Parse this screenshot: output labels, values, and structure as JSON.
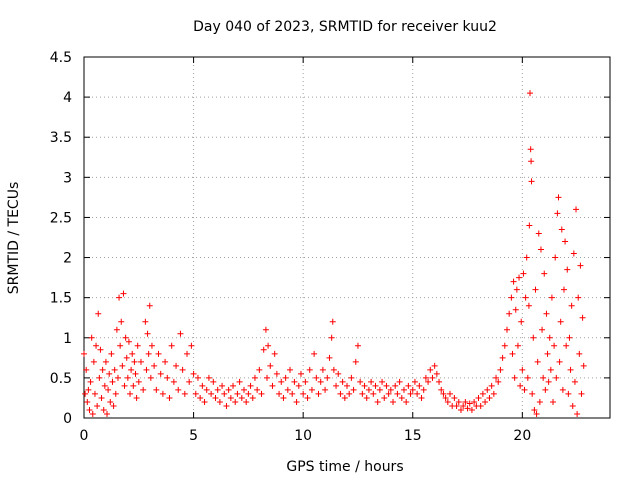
{
  "chart_data": {
    "type": "scatter",
    "title": "Day 040 of 2023, SRMTID for receiver kuu2",
    "xlabel": "GPS time / hours",
    "ylabel": "SRMTID / TECUs",
    "xlim": [
      0,
      24
    ],
    "ylim": [
      0,
      4.5
    ],
    "x_ticks": [
      "0",
      "5",
      "10",
      "15",
      "20"
    ],
    "y_ticks": [
      "0",
      "0.5",
      "1",
      "1.5",
      "2",
      "2.5",
      "3",
      "3.5",
      "4",
      "4.5"
    ],
    "grid": true,
    "marker": "+",
    "color": "#ff0000",
    "series": [
      {
        "name": "SRMTID",
        "points": [
          [
            0.0,
            0.8
          ],
          [
            0.05,
            0.3
          ],
          [
            0.1,
            0.6
          ],
          [
            0.15,
            0.2
          ],
          [
            0.2,
            0.35
          ],
          [
            0.25,
            0.1
          ],
          [
            0.3,
            0.45
          ],
          [
            0.35,
            1.0
          ],
          [
            0.4,
            0.05
          ],
          [
            0.45,
            0.7
          ],
          [
            0.5,
            0.3
          ],
          [
            0.55,
            0.9
          ],
          [
            0.6,
            0.15
          ],
          [
            0.65,
            1.3
          ],
          [
            0.7,
            0.5
          ],
          [
            0.75,
            0.85
          ],
          [
            0.8,
            0.25
          ],
          [
            0.85,
            0.6
          ],
          [
            0.9,
            0.1
          ],
          [
            0.95,
            0.4
          ],
          [
            1.0,
            0.7
          ],
          [
            1.05,
            0.05
          ],
          [
            1.1,
            0.35
          ],
          [
            1.15,
            0.55
          ],
          [
            1.2,
            0.2
          ],
          [
            1.25,
            0.8
          ],
          [
            1.3,
            0.45
          ],
          [
            1.35,
            0.15
          ],
          [
            1.4,
            0.6
          ],
          [
            1.45,
            0.3
          ],
          [
            1.5,
            1.1
          ],
          [
            1.55,
            0.5
          ],
          [
            1.6,
            1.5
          ],
          [
            1.65,
            0.9
          ],
          [
            1.7,
            1.2
          ],
          [
            1.75,
            0.65
          ],
          [
            1.8,
            1.55
          ],
          [
            1.85,
            0.4
          ],
          [
            1.9,
            1.0
          ],
          [
            1.95,
            0.75
          ],
          [
            2.0,
            0.5
          ],
          [
            2.05,
            0.95
          ],
          [
            2.1,
            0.3
          ],
          [
            2.15,
            0.6
          ],
          [
            2.2,
            0.8
          ],
          [
            2.25,
            0.4
          ],
          [
            2.3,
            0.7
          ],
          [
            2.35,
            0.55
          ],
          [
            2.4,
            0.25
          ],
          [
            2.45,
            0.9
          ],
          [
            2.5,
            0.45
          ],
          [
            2.6,
            0.7
          ],
          [
            2.7,
            0.35
          ],
          [
            2.8,
            1.2
          ],
          [
            2.85,
            0.6
          ],
          [
            2.9,
            1.05
          ],
          [
            2.95,
            0.8
          ],
          [
            3.0,
            1.4
          ],
          [
            3.05,
            0.5
          ],
          [
            3.1,
            0.9
          ],
          [
            3.2,
            0.65
          ],
          [
            3.3,
            0.35
          ],
          [
            3.4,
            0.8
          ],
          [
            3.5,
            0.55
          ],
          [
            3.6,
            0.3
          ],
          [
            3.7,
            0.7
          ],
          [
            3.8,
            0.5
          ],
          [
            3.9,
            0.25
          ],
          [
            4.0,
            0.9
          ],
          [
            4.1,
            0.45
          ],
          [
            4.2,
            0.65
          ],
          [
            4.3,
            0.35
          ],
          [
            4.4,
            1.05
          ],
          [
            4.5,
            0.6
          ],
          [
            4.6,
            0.3
          ],
          [
            4.7,
            0.8
          ],
          [
            4.8,
            0.45
          ],
          [
            4.9,
            0.9
          ],
          [
            5.0,
            0.55
          ],
          [
            5.1,
            0.3
          ],
          [
            5.2,
            0.5
          ],
          [
            5.3,
            0.25
          ],
          [
            5.4,
            0.4
          ],
          [
            5.5,
            0.2
          ],
          [
            5.6,
            0.35
          ],
          [
            5.7,
            0.5
          ],
          [
            5.8,
            0.3
          ],
          [
            5.9,
            0.45
          ],
          [
            6.0,
            0.25
          ],
          [
            6.1,
            0.35
          ],
          [
            6.2,
            0.2
          ],
          [
            6.3,
            0.4
          ],
          [
            6.4,
            0.3
          ],
          [
            6.5,
            0.15
          ],
          [
            6.6,
            0.35
          ],
          [
            6.7,
            0.25
          ],
          [
            6.8,
            0.4
          ],
          [
            6.9,
            0.2
          ],
          [
            7.0,
            0.3
          ],
          [
            7.1,
            0.45
          ],
          [
            7.2,
            0.25
          ],
          [
            7.3,
            0.35
          ],
          [
            7.4,
            0.2
          ],
          [
            7.5,
            0.3
          ],
          [
            7.6,
            0.4
          ],
          [
            7.7,
            0.25
          ],
          [
            7.8,
            0.5
          ],
          [
            7.9,
            0.35
          ],
          [
            8.0,
            0.6
          ],
          [
            8.1,
            0.3
          ],
          [
            8.2,
            0.85
          ],
          [
            8.3,
            1.1
          ],
          [
            8.35,
            0.5
          ],
          [
            8.4,
            0.9
          ],
          [
            8.5,
            0.65
          ],
          [
            8.6,
            0.4
          ],
          [
            8.7,
            0.8
          ],
          [
            8.8,
            0.55
          ],
          [
            8.9,
            0.3
          ],
          [
            9.0,
            0.45
          ],
          [
            9.1,
            0.25
          ],
          [
            9.2,
            0.5
          ],
          [
            9.3,
            0.35
          ],
          [
            9.4,
            0.6
          ],
          [
            9.5,
            0.3
          ],
          [
            9.6,
            0.45
          ],
          [
            9.7,
            0.2
          ],
          [
            9.8,
            0.4
          ],
          [
            9.9,
            0.55
          ],
          [
            10.0,
            0.3
          ],
          [
            10.1,
            0.45
          ],
          [
            10.2,
            0.25
          ],
          [
            10.3,
            0.6
          ],
          [
            10.4,
            0.35
          ],
          [
            10.5,
            0.8
          ],
          [
            10.6,
            0.5
          ],
          [
            10.7,
            0.3
          ],
          [
            10.8,
            0.45
          ],
          [
            10.9,
            0.6
          ],
          [
            11.0,
            0.35
          ],
          [
            11.1,
            0.5
          ],
          [
            11.2,
            0.75
          ],
          [
            11.3,
            1.0
          ],
          [
            11.35,
            1.2
          ],
          [
            11.4,
            0.6
          ],
          [
            11.5,
            0.4
          ],
          [
            11.6,
            0.55
          ],
          [
            11.7,
            0.3
          ],
          [
            11.8,
            0.45
          ],
          [
            11.9,
            0.25
          ],
          [
            12.0,
            0.4
          ],
          [
            12.1,
            0.3
          ],
          [
            12.2,
            0.5
          ],
          [
            12.3,
            0.35
          ],
          [
            12.4,
            0.7
          ],
          [
            12.5,
            0.9
          ],
          [
            12.6,
            0.45
          ],
          [
            12.7,
            0.3
          ],
          [
            12.8,
            0.4
          ],
          [
            12.9,
            0.25
          ],
          [
            13.0,
            0.35
          ],
          [
            13.1,
            0.45
          ],
          [
            13.2,
            0.3
          ],
          [
            13.3,
            0.4
          ],
          [
            13.4,
            0.2
          ],
          [
            13.5,
            0.35
          ],
          [
            13.6,
            0.45
          ],
          [
            13.7,
            0.25
          ],
          [
            13.8,
            0.4
          ],
          [
            13.9,
            0.3
          ],
          [
            14.0,
            0.35
          ],
          [
            14.1,
            0.2
          ],
          [
            14.2,
            0.4
          ],
          [
            14.3,
            0.3
          ],
          [
            14.4,
            0.45
          ],
          [
            14.5,
            0.25
          ],
          [
            14.6,
            0.35
          ],
          [
            14.7,
            0.2
          ],
          [
            14.8,
            0.4
          ],
          [
            14.9,
            0.3
          ],
          [
            15.0,
            0.35
          ],
          [
            15.1,
            0.45
          ],
          [
            15.2,
            0.3
          ],
          [
            15.3,
            0.4
          ],
          [
            15.4,
            0.25
          ],
          [
            15.5,
            0.35
          ],
          [
            15.6,
            0.5
          ],
          [
            15.7,
            0.45
          ],
          [
            15.8,
            0.6
          ],
          [
            15.9,
            0.5
          ],
          [
            16.0,
            0.65
          ],
          [
            16.1,
            0.55
          ],
          [
            16.2,
            0.45
          ],
          [
            16.3,
            0.35
          ],
          [
            16.4,
            0.3
          ],
          [
            16.5,
            0.25
          ],
          [
            16.6,
            0.2
          ],
          [
            16.7,
            0.3
          ],
          [
            16.8,
            0.15
          ],
          [
            16.9,
            0.25
          ],
          [
            17.0,
            0.15
          ],
          [
            17.1,
            0.2
          ],
          [
            17.2,
            0.1
          ],
          [
            17.3,
            0.15
          ],
          [
            17.4,
            0.2
          ],
          [
            17.5,
            0.12
          ],
          [
            17.6,
            0.18
          ],
          [
            17.7,
            0.1
          ],
          [
            17.8,
            0.2
          ],
          [
            17.9,
            0.15
          ],
          [
            18.0,
            0.25
          ],
          [
            18.1,
            0.15
          ],
          [
            18.2,
            0.3
          ],
          [
            18.3,
            0.2
          ],
          [
            18.4,
            0.35
          ],
          [
            18.5,
            0.25
          ],
          [
            18.6,
            0.4
          ],
          [
            18.7,
            0.3
          ],
          [
            18.8,
            0.5
          ],
          [
            18.9,
            0.45
          ],
          [
            19.0,
            0.6
          ],
          [
            19.1,
            0.75
          ],
          [
            19.2,
            0.9
          ],
          [
            19.3,
            1.1
          ],
          [
            19.4,
            1.3
          ],
          [
            19.5,
            1.5
          ],
          [
            19.55,
            0.8
          ],
          [
            19.6,
            1.7
          ],
          [
            19.65,
            0.5
          ],
          [
            19.7,
            1.35
          ],
          [
            19.75,
            1.6
          ],
          [
            19.8,
            0.9
          ],
          [
            19.85,
            1.75
          ],
          [
            19.9,
            0.4
          ],
          [
            19.95,
            1.2
          ],
          [
            20.0,
            0.6
          ],
          [
            20.05,
            1.8
          ],
          [
            20.1,
            0.35
          ],
          [
            20.15,
            1.5
          ],
          [
            20.2,
            2.0
          ],
          [
            20.25,
            0.5
          ],
          [
            20.3,
            1.4
          ],
          [
            20.32,
            2.4
          ],
          [
            20.35,
            4.05
          ],
          [
            20.38,
            3.35
          ],
          [
            20.4,
            3.2
          ],
          [
            20.42,
            2.95
          ],
          [
            20.45,
            0.3
          ],
          [
            20.5,
            1.0
          ],
          [
            20.55,
            0.1
          ],
          [
            20.6,
            1.6
          ],
          [
            20.65,
            0.05
          ],
          [
            20.7,
            0.7
          ],
          [
            20.75,
            2.3
          ],
          [
            20.8,
            0.2
          ],
          [
            20.85,
            2.1
          ],
          [
            20.9,
            1.1
          ],
          [
            20.95,
            0.5
          ],
          [
            21.0,
            1.8
          ],
          [
            21.05,
            0.35
          ],
          [
            21.1,
            1.3
          ],
          [
            21.15,
            0.8
          ],
          [
            21.2,
            0.45
          ],
          [
            21.25,
            1.0
          ],
          [
            21.3,
            0.6
          ],
          [
            21.35,
            1.5
          ],
          [
            21.4,
            0.2
          ],
          [
            21.45,
            0.9
          ],
          [
            21.5,
            2.0
          ],
          [
            21.55,
            0.5
          ],
          [
            21.6,
            2.55
          ],
          [
            21.65,
            2.75
          ],
          [
            21.7,
            0.7
          ],
          [
            21.75,
            1.2
          ],
          [
            21.8,
            2.35
          ],
          [
            21.85,
            0.35
          ],
          [
            21.9,
            1.6
          ],
          [
            21.95,
            2.2
          ],
          [
            22.0,
            0.9
          ],
          [
            22.05,
            1.85
          ],
          [
            22.1,
            0.3
          ],
          [
            22.15,
            1.0
          ],
          [
            22.2,
            0.6
          ],
          [
            22.25,
            1.4
          ],
          [
            22.3,
            0.15
          ],
          [
            22.35,
            2.05
          ],
          [
            22.4,
            0.45
          ],
          [
            22.45,
            2.6
          ],
          [
            22.5,
            0.05
          ],
          [
            22.55,
            1.5
          ],
          [
            22.6,
            0.8
          ],
          [
            22.65,
            1.9
          ],
          [
            22.7,
            0.3
          ],
          [
            22.75,
            1.25
          ],
          [
            22.8,
            0.65
          ]
        ]
      }
    ]
  }
}
